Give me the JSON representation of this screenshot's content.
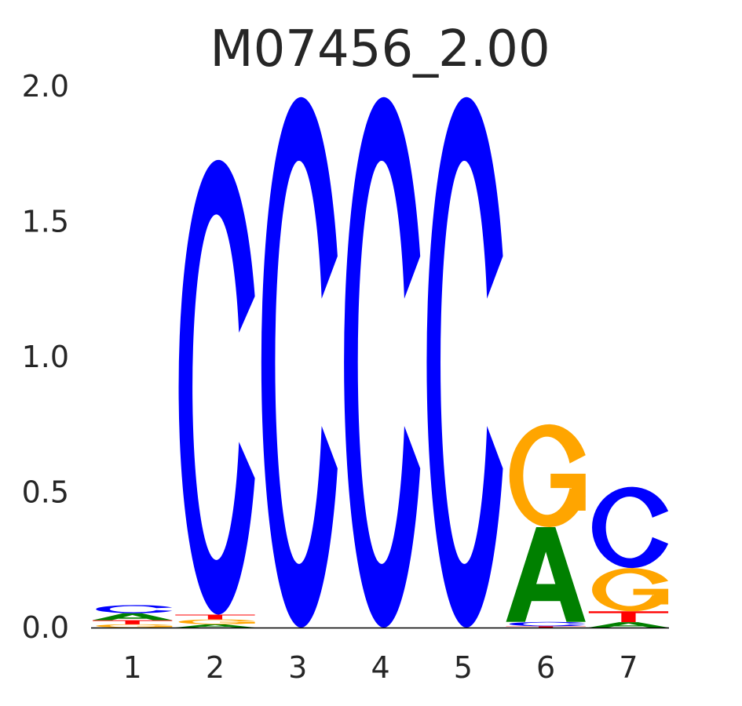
{
  "chart_data": {
    "type": "sequence-logo",
    "title": "M07456_2.00",
    "xlabel": "",
    "ylabel": "",
    "ylim": [
      0,
      2.0
    ],
    "yticks": [
      "0.0",
      "0.5",
      "1.0",
      "1.5",
      "2.0"
    ],
    "ytick_values": [
      0,
      0.5,
      1.0,
      1.5,
      2.0
    ],
    "categories": [
      "1",
      "2",
      "3",
      "4",
      "5",
      "6",
      "7"
    ],
    "colors": {
      "A": "#008000",
      "C": "#0000ff",
      "G": "#ffa500",
      "T": "#ff0000"
    },
    "positions": [
      [
        {
          "base": "G",
          "height": 0.012
        },
        {
          "base": "T",
          "height": 0.015
        },
        {
          "base": "A",
          "height": 0.026
        },
        {
          "base": "C",
          "height": 0.03
        }
      ],
      [
        {
          "base": "A",
          "height": 0.012
        },
        {
          "base": "G",
          "height": 0.018
        },
        {
          "base": "T",
          "height": 0.018
        },
        {
          "base": "C",
          "height": 1.68
        }
      ],
      [
        {
          "base": "C",
          "height": 1.96
        }
      ],
      [
        {
          "base": "C",
          "height": 1.96
        }
      ],
      [
        {
          "base": "C",
          "height": 1.96
        }
      ],
      [
        {
          "base": "T",
          "height": 0.005
        },
        {
          "base": "C",
          "height": 0.016
        },
        {
          "base": "A",
          "height": 0.35
        },
        {
          "base": "G",
          "height": 0.38
        }
      ],
      [
        {
          "base": "A",
          "height": 0.02
        },
        {
          "base": "T",
          "height": 0.04
        },
        {
          "base": "G",
          "height": 0.16
        },
        {
          "base": "C",
          "height": 0.3
        }
      ]
    ]
  }
}
